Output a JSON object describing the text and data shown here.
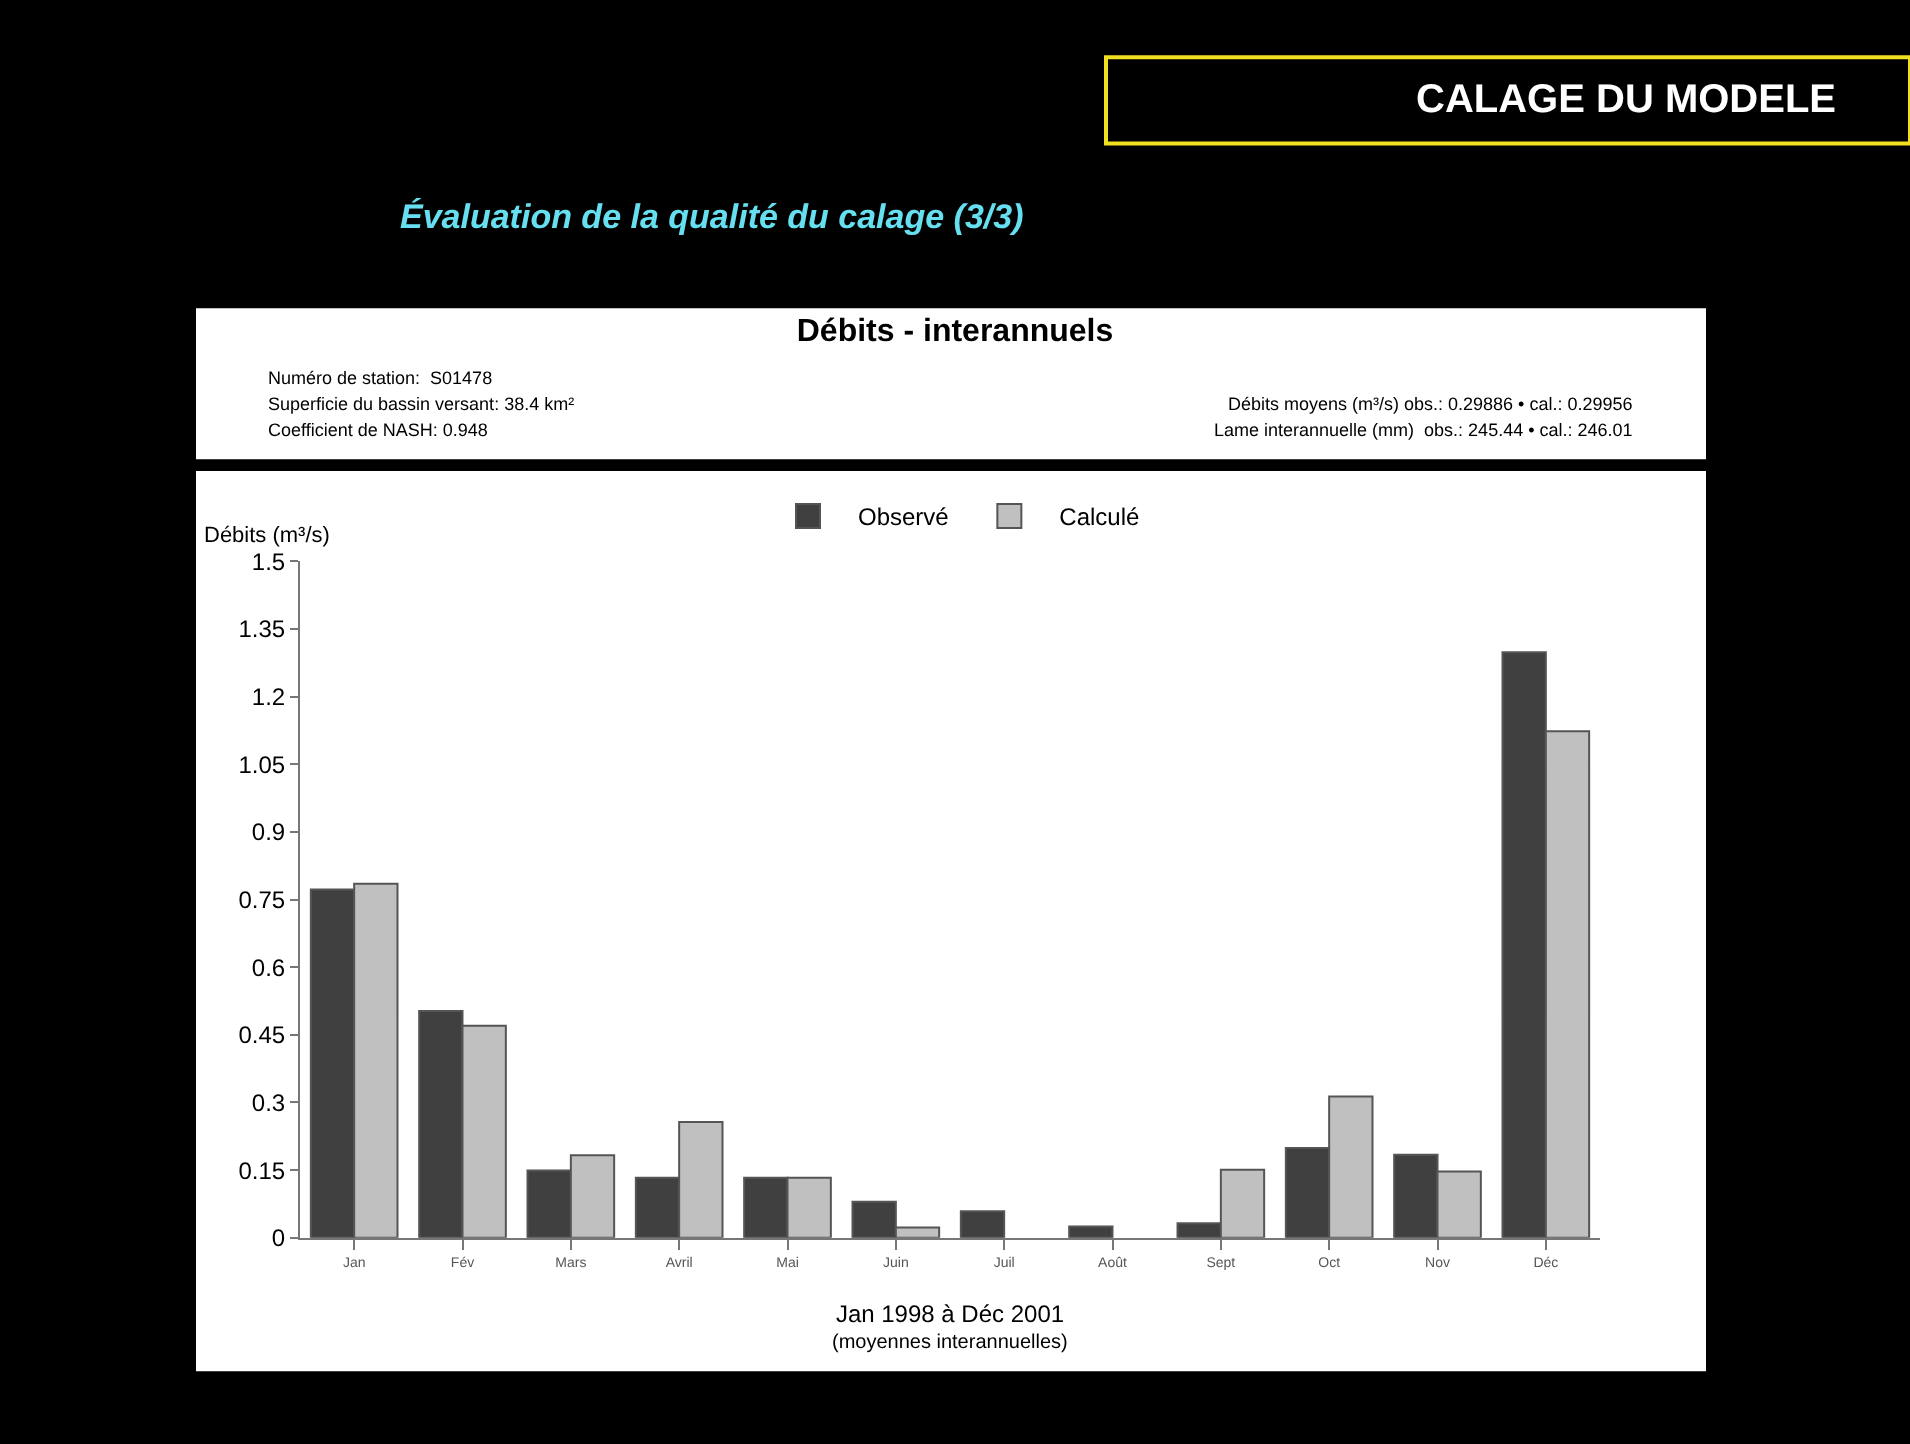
{
  "chart_data": {
    "type": "bar",
    "title": "Débits - interannuels",
    "categories": [
      "Jan",
      "Fév",
      "Mars",
      "Avril",
      "Mai",
      "Juin",
      "Juil",
      "Août",
      "Sept",
      "Oct",
      "Nov",
      "Déc"
    ],
    "series": [
      {
        "name": "Observé",
        "color": "#404040",
        "values": [
          0.772,
          0.503,
          0.149,
          0.133,
          0.133,
          0.08,
          0.059,
          0.025,
          0.032,
          0.199,
          0.184,
          1.298
        ]
      },
      {
        "name": "Calculé",
        "color": "#c0c0c0",
        "values": [
          0.785,
          0.47,
          0.183,
          0.257,
          0.133,
          0.023,
          null,
          null,
          0.151,
          0.313,
          0.147,
          1.123
        ]
      }
    ],
    "ylabel": "Débits (m³/s)",
    "xlabel": "Jan 1998 à Déc 2001",
    "ylim": [
      0,
      1.5
    ],
    "yticks": [
      0,
      0.15,
      0.3,
      0.45,
      0.6,
      0.75,
      0.9,
      1.05,
      1.2,
      1.35,
      1.5
    ],
    "legend": "top",
    "annotations": [
      "CALAGE DU MODELE",
      "Évaluation de la qualité du calage (3/3)",
      "Numéro de station:  S01478",
      "Superficie du bassin versant: 38.4 km²",
      "Coefficient de NASH: 0.948",
      "Débits moyens (m³/s) obs.: 0.29886 • cal.: 0.29956",
      "Lame interannuelle (mm)  obs.: 245.44 • cal.: 246.01",
      "(moyennes interannuelles)"
    ]
  }
}
